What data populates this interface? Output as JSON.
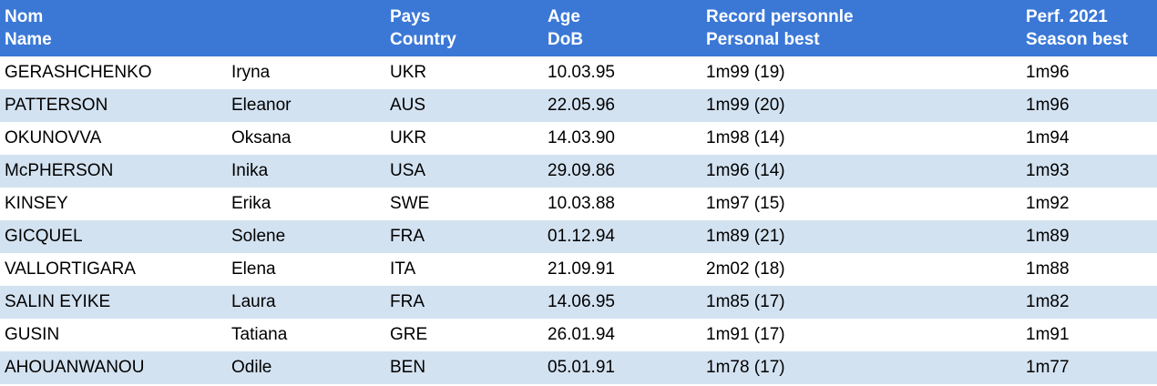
{
  "header": [
    {
      "lines": [
        "Nom",
        "Name"
      ]
    },
    {
      "lines": [
        "Pays",
        "Country"
      ]
    },
    {
      "lines": [
        "Age",
        "DoB"
      ]
    },
    {
      "lines": [
        "Record personnle",
        "Personal best"
      ]
    },
    {
      "lines": [
        "Perf. 2021",
        "Season best"
      ]
    }
  ],
  "table": {
    "rows": [
      [
        "GERASHCHENKO",
        "Iryna",
        "UKR",
        "10.03.95",
        "1m99 (19)",
        "1m96"
      ],
      [
        "PATTERSON",
        "Eleanor",
        "AUS",
        "22.05.96",
        "1m99 (20)",
        "1m96"
      ],
      [
        "OKUNOVVA",
        "Oksana",
        "UKR",
        "14.03.90",
        "1m98 (14)",
        "1m94"
      ],
      [
        "McPHERSON",
        "Inika",
        "USA",
        "29.09.86",
        "1m96 (14)",
        "1m93"
      ],
      [
        "KINSEY",
        "Erika",
        "SWE",
        "10.03.88",
        "1m97 (15)",
        "1m92"
      ],
      [
        "GICQUEL",
        "Solene",
        "FRA",
        "01.12.94",
        "1m89 (21)",
        "1m89"
      ],
      [
        "VALLORTIGARA",
        "Elena",
        "ITA",
        "21.09.91",
        "2m02 (18)",
        "1m88"
      ],
      [
        "SALIN EYIKE",
        "Laura",
        "FRA",
        "14.06.95",
        "1m85 (17)",
        "1m82"
      ],
      [
        "GUSIN",
        "Tatiana",
        "GRE",
        "26.01.94",
        "1m91 (17)",
        "1m91"
      ],
      [
        "AHOUANWANOU",
        "Odile",
        "BEN",
        "05.01.91",
        "1m78 (17)",
        "1m77"
      ]
    ]
  }
}
